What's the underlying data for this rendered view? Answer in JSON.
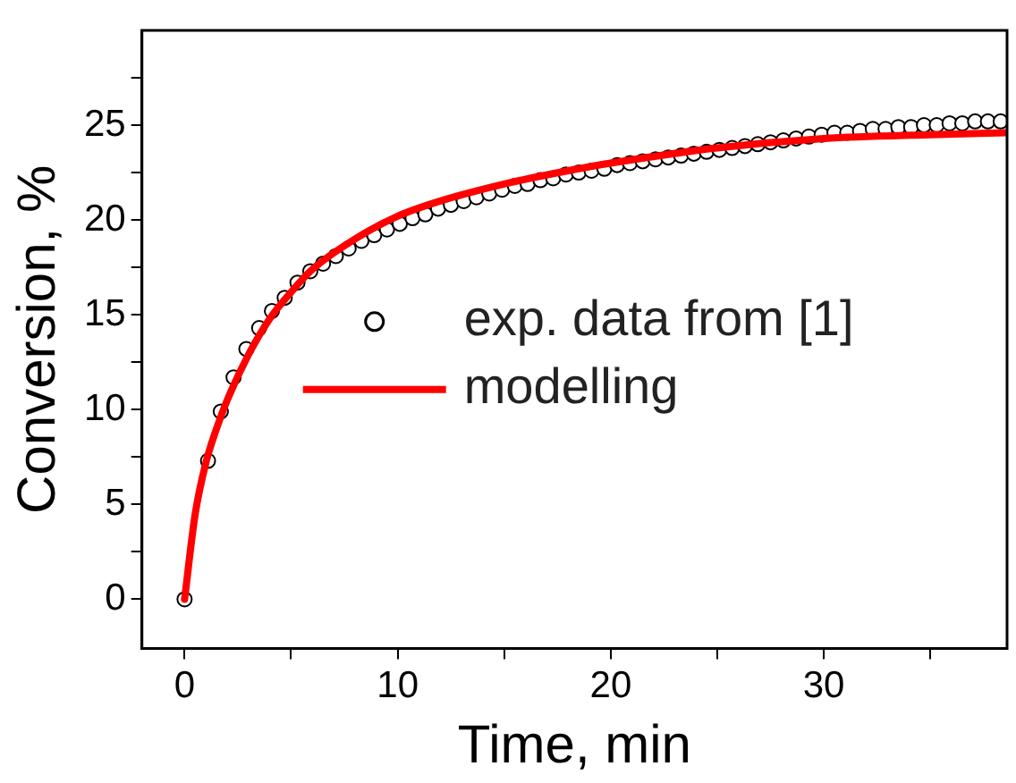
{
  "chart_data": {
    "type": "scatter",
    "xlabel": "Time, min",
    "ylabel": "Conversion, %",
    "xlim": [
      -2,
      38.6
    ],
    "ylim": [
      -2.6,
      30
    ],
    "xticks": [
      0,
      {
        "value": 5,
        "label": null
      },
      10,
      {
        "value": 15,
        "label": null
      },
      20,
      {
        "value": 25,
        "label": null
      },
      30,
      {
        "value": 35,
        "label": null
      }
    ],
    "yticks": [
      0,
      {
        "value": 2.5,
        "label": null
      },
      5,
      {
        "value": 7.5,
        "label": null
      },
      10,
      {
        "value": 12.5,
        "label": null
      },
      15,
      {
        "value": 17.5,
        "label": null
      },
      20,
      {
        "value": 22.5,
        "label": null
      },
      25,
      {
        "value": 27.5,
        "label": null
      }
    ],
    "grid": false,
    "legend": "right",
    "series": [
      {
        "name": "exp. data from [1]",
        "type": "scatter",
        "marker": "circle",
        "color": "#000000",
        "x": [
          0,
          1.1,
          1.7,
          2.3,
          2.9,
          3.5,
          4.1,
          4.7,
          5.3,
          5.9,
          6.5,
          7.1,
          7.7,
          8.3,
          8.9,
          9.5,
          10.1,
          10.7,
          11.3,
          11.9,
          12.5,
          13.1,
          13.7,
          14.3,
          14.9,
          15.5,
          16.1,
          16.7,
          17.3,
          17.9,
          18.5,
          19.1,
          19.7,
          20.3,
          20.9,
          21.5,
          22.1,
          22.7,
          23.3,
          23.9,
          24.5,
          25.1,
          25.7,
          26.3,
          26.9,
          27.5,
          28.1,
          28.7,
          29.3,
          29.9,
          30.5,
          31.1,
          31.7,
          32.3,
          32.9,
          33.5,
          34.1,
          34.7,
          35.3,
          35.9,
          36.5,
          37.1,
          37.7,
          38.3
        ],
        "values": [
          0,
          7.3,
          9.9,
          11.7,
          13.2,
          14.3,
          15.2,
          15.9,
          16.7,
          17.3,
          17.7,
          18.1,
          18.5,
          18.9,
          19.2,
          19.5,
          19.8,
          20.1,
          20.3,
          20.6,
          20.8,
          21.0,
          21.2,
          21.4,
          21.6,
          21.8,
          21.9,
          22.1,
          22.2,
          22.4,
          22.5,
          22.6,
          22.7,
          22.9,
          23.0,
          23.1,
          23.2,
          23.3,
          23.4,
          23.5,
          23.6,
          23.7,
          23.8,
          23.9,
          24.0,
          24.1,
          24.2,
          24.3,
          24.4,
          24.5,
          24.6,
          24.6,
          24.7,
          24.8,
          24.8,
          24.9,
          24.9,
          25.0,
          25.0,
          25.1,
          25.1,
          25.2,
          25.2,
          25.2
        ]
      },
      {
        "name": "modelling",
        "type": "line",
        "marker": "none",
        "color": "#ff0000",
        "x": [
          0,
          0.5,
          1,
          1.5,
          2,
          3,
          4,
          5,
          6,
          8,
          10,
          12,
          15,
          18,
          20,
          25,
          30,
          35,
          38.6
        ],
        "values": [
          0,
          4.5,
          7.2,
          9.0,
          10.5,
          12.9,
          14.8,
          16.2,
          17.4,
          19.0,
          20.2,
          21.0,
          21.9,
          22.6,
          23.0,
          23.8,
          24.3,
          24.5,
          24.6
        ]
      }
    ]
  }
}
